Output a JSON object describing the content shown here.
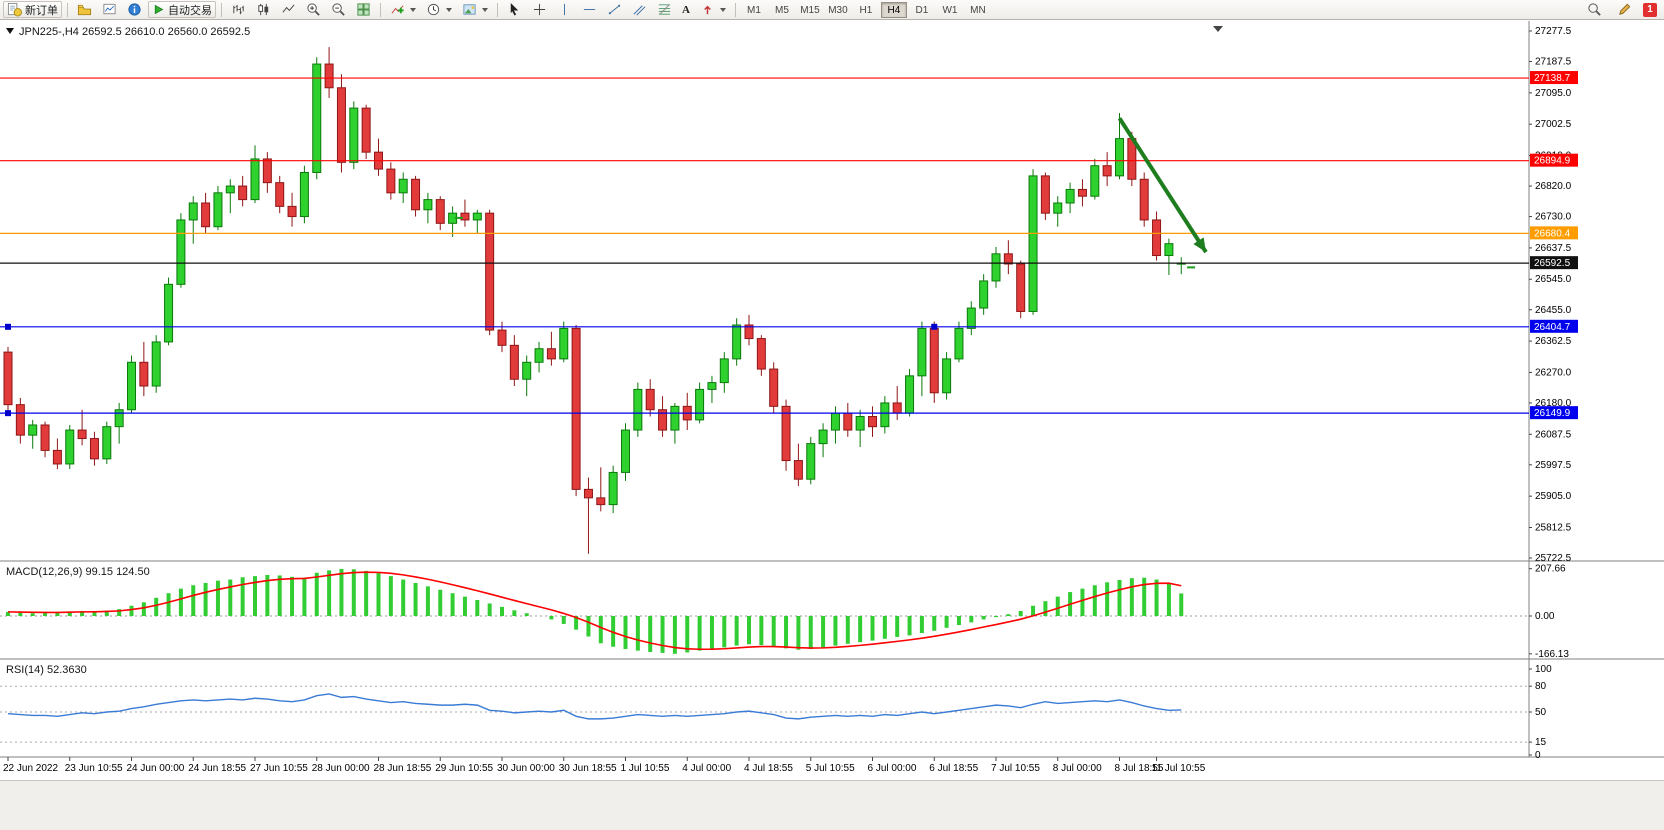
{
  "toolbar": {
    "new_order": "新订单",
    "auto_trading": "自动交易",
    "text_tool_glyph": "A",
    "timeframes": [
      "M1",
      "M5",
      "M15",
      "M30",
      "H1",
      "H4",
      "D1",
      "W1",
      "MN"
    ],
    "active_timeframe": "H4",
    "notification_count": "1"
  },
  "chart_data": [
    {
      "type": "candlestick",
      "title": "JPN225-,H4",
      "header": "JPN225-,H4  26592.5 26610.0 26560.0 26592.5",
      "ylim": [
        25722.5,
        27277.5
      ],
      "up_color": "#2fd12f",
      "up_stroke": "#0b7a0b",
      "down_color": "#e23b3b",
      "down_stroke": "#8f1616",
      "y_ticks": [
        27277.5,
        27187.5,
        27095.0,
        27002.5,
        26910.0,
        26820.0,
        26730.0,
        26637.5,
        26545.0,
        26455.0,
        26362.5,
        26270.0,
        26180.0,
        26087.5,
        25997.5,
        25905.0,
        25812.5,
        25722.5
      ],
      "hlines": [
        {
          "value": 27138.7,
          "color": "#ff0000"
        },
        {
          "value": 26894.9,
          "color": "#ff0000"
        },
        {
          "value": 26680.4,
          "color": "#ff9d00"
        },
        {
          "value": 26592.5,
          "color": "#111111"
        },
        {
          "value": 26404.7,
          "color": "#0000ee"
        },
        {
          "value": 26149.9,
          "color": "#0000ee"
        }
      ],
      "handles": [
        {
          "bar": 0,
          "value": 26404.7
        },
        {
          "bar": 75,
          "value": 26404.7
        },
        {
          "bar": 0,
          "value": 26149.9
        }
      ],
      "tick_markers": [
        {
          "bar": 36.5,
          "price": 26726
        },
        {
          "bar": 95.8,
          "price": 26580
        }
      ],
      "annotation_arrow": {
        "from_bar": 90,
        "from_price": 27020,
        "to_bar": 97,
        "to_price": 26625,
        "color": "#1e7d1e"
      },
      "x_labels": [
        {
          "bar": 0,
          "text": "22 Jun 2022"
        },
        {
          "bar": 5,
          "text": "23 Jun 10:55"
        },
        {
          "bar": 10,
          "text": "24 Jun 00:00"
        },
        {
          "bar": 15,
          "text": "24 Jun 18:55"
        },
        {
          "bar": 20,
          "text": "27 Jun 10:55"
        },
        {
          "bar": 25,
          "text": "28 Jun 00:00"
        },
        {
          "bar": 30,
          "text": "28 Jun 18:55"
        },
        {
          "bar": 35,
          "text": "29 Jun 10:55"
        },
        {
          "bar": 40,
          "text": "30 Jun 00:00"
        },
        {
          "bar": 45,
          "text": "30 Jun 18:55"
        },
        {
          "bar": 50,
          "text": "1 Jul 10:55"
        },
        {
          "bar": 55,
          "text": "4 Jul 00:00"
        },
        {
          "bar": 60,
          "text": "4 Jul 18:55"
        },
        {
          "bar": 65,
          "text": "5 Jul 10:55"
        },
        {
          "bar": 70,
          "text": "6 Jul 00:00"
        },
        {
          "bar": 75,
          "text": "6 Jul 18:55"
        },
        {
          "bar": 80,
          "text": "7 Jul 10:55"
        },
        {
          "bar": 85,
          "text": "8 Jul 00:00"
        },
        {
          "bar": 90,
          "text": "8 Jul 18:55"
        },
        {
          "bar": 93,
          "text": "11 Jul 10:55"
        }
      ],
      "ohlc": [
        [
          26330,
          26345,
          26155,
          26175
        ],
        [
          26175,
          26195,
          26060,
          26085
        ],
        [
          26085,
          26130,
          26045,
          26115
        ],
        [
          26115,
          26125,
          26020,
          26040
        ],
        [
          26040,
          26075,
          25985,
          26000
        ],
        [
          26000,
          26115,
          25985,
          26100
        ],
        [
          26100,
          26160,
          26055,
          26075
        ],
        [
          26075,
          26095,
          25995,
          26015
        ],
        [
          26015,
          26125,
          26000,
          26110
        ],
        [
          26110,
          26180,
          26060,
          26160
        ],
        [
          26160,
          26320,
          26150,
          26300
        ],
        [
          26300,
          26360,
          26200,
          26230
        ],
        [
          26230,
          26380,
          26210,
          26360
        ],
        [
          26360,
          26550,
          26350,
          26530
        ],
        [
          26530,
          26740,
          26520,
          26720
        ],
        [
          26720,
          26790,
          26650,
          26770
        ],
        [
          26770,
          26800,
          26680,
          26700
        ],
        [
          26700,
          26820,
          26690,
          26800
        ],
        [
          26800,
          26840,
          26740,
          26820
        ],
        [
          26820,
          26850,
          26760,
          26780
        ],
        [
          26780,
          26940,
          26770,
          26900
        ],
        [
          26900,
          26920,
          26800,
          26830
        ],
        [
          26830,
          26850,
          26740,
          26760
        ],
        [
          26760,
          26800,
          26700,
          26730
        ],
        [
          26730,
          26880,
          26710,
          26860
        ],
        [
          26860,
          27200,
          26840,
          27180
        ],
        [
          27180,
          27230,
          27080,
          27110
        ],
        [
          27110,
          27150,
          26860,
          26890
        ],
        [
          26890,
          27070,
          26870,
          27050
        ],
        [
          27050,
          27060,
          26900,
          26920
        ],
        [
          26920,
          26960,
          26850,
          26870
        ],
        [
          26870,
          26890,
          26780,
          26800
        ],
        [
          26800,
          26860,
          26770,
          26840
        ],
        [
          26840,
          26850,
          26730,
          26750
        ],
        [
          26750,
          26800,
          26710,
          26780
        ],
        [
          26780,
          26790,
          26690,
          26710
        ],
        [
          26710,
          26760,
          26670,
          26740
        ],
        [
          26740,
          26780,
          26700,
          26720
        ],
        [
          26720,
          26750,
          26680,
          26740
        ],
        [
          26740,
          26750,
          26380,
          26395
        ],
        [
          26395,
          26420,
          26330,
          26350
        ],
        [
          26350,
          26380,
          26230,
          26250
        ],
        [
          26250,
          26320,
          26200,
          26300
        ],
        [
          26300,
          26360,
          26270,
          26340
        ],
        [
          26340,
          26390,
          26290,
          26310
        ],
        [
          26310,
          26420,
          26300,
          26400
        ],
        [
          26400,
          26410,
          25905,
          25925
        ],
        [
          25925,
          25960,
          25735,
          25900
        ],
        [
          25900,
          25990,
          25860,
          25880
        ],
        [
          25880,
          25995,
          25855,
          25975
        ],
        [
          25975,
          26120,
          25950,
          26100
        ],
        [
          26100,
          26240,
          26080,
          26220
        ],
        [
          26220,
          26250,
          26140,
          26160
        ],
        [
          26160,
          26200,
          26080,
          26100
        ],
        [
          26100,
          26180,
          26060,
          26170
        ],
        [
          26170,
          26210,
          26100,
          26130
        ],
        [
          26130,
          26240,
          26120,
          26220
        ],
        [
          26220,
          26260,
          26180,
          26240
        ],
        [
          26240,
          26330,
          26210,
          26310
        ],
        [
          26310,
          26430,
          26290,
          26410
        ],
        [
          26410,
          26440,
          26350,
          26370
        ],
        [
          26370,
          26380,
          26260,
          26280
        ],
        [
          26280,
          26300,
          26150,
          26170
        ],
        [
          26170,
          26190,
          25980,
          26010
        ],
        [
          26010,
          26060,
          25935,
          25955
        ],
        [
          25955,
          26080,
          25940,
          26060
        ],
        [
          26060,
          26120,
          26020,
          26100
        ],
        [
          26100,
          26170,
          26060,
          26150
        ],
        [
          26150,
          26180,
          26080,
          26100
        ],
        [
          26100,
          26160,
          26050,
          26140
        ],
        [
          26140,
          26170,
          26080,
          26110
        ],
        [
          26110,
          26200,
          26090,
          26180
        ],
        [
          26180,
          26230,
          26130,
          26150
        ],
        [
          26150,
          26280,
          26140,
          26260
        ],
        [
          26260,
          26420,
          26200,
          26400
        ],
        [
          26400,
          26420,
          26180,
          26210
        ],
        [
          26210,
          26330,
          26190,
          26310
        ],
        [
          26310,
          26420,
          26300,
          26400
        ],
        [
          26400,
          26480,
          26380,
          26460
        ],
        [
          26460,
          26560,
          26440,
          26540
        ],
        [
          26540,
          26640,
          26520,
          26620
        ],
        [
          26620,
          26660,
          26560,
          26590
        ],
        [
          26590,
          26600,
          26430,
          26450
        ],
        [
          26450,
          26870,
          26440,
          26850
        ],
        [
          26850,
          26860,
          26720,
          26740
        ],
        [
          26740,
          26790,
          26700,
          26770
        ],
        [
          26770,
          26830,
          26740,
          26810
        ],
        [
          26810,
          26840,
          26760,
          26790
        ],
        [
          26790,
          26900,
          26780,
          26880
        ],
        [
          26880,
          26920,
          26820,
          26850
        ],
        [
          26850,
          27035,
          26840,
          26960
        ],
        [
          26960,
          26980,
          26820,
          26840
        ],
        [
          26840,
          26860,
          26700,
          26720
        ],
        [
          26720,
          26745,
          26600,
          26615
        ],
        [
          26615,
          26665,
          26557.5,
          26650
        ],
        [
          26592.5,
          26610,
          26560,
          26592.5
        ]
      ]
    },
    {
      "type": "bar",
      "title": "MACD(12,26,9)",
      "values_label": "99.15 124.50",
      "ylim": [
        -180,
        215
      ],
      "bar_color": "#32cd32",
      "signal_color": "#ff0000",
      "y_ticks": [
        207.66,
        0,
        -166.13
      ],
      "y_tick_labels": [
        "207.66",
        "0.00",
        "-166.13"
      ],
      "values": [
        18,
        15,
        12,
        14,
        16,
        20,
        22,
        20,
        24,
        30,
        45,
        60,
        80,
        100,
        120,
        135,
        145,
        155,
        160,
        170,
        175,
        180,
        178,
        172,
        168,
        190,
        200,
        207,
        205,
        198,
        188,
        175,
        160,
        145,
        130,
        115,
        100,
        85,
        70,
        55,
        40,
        25,
        12,
        0,
        -15,
        -35,
        -60,
        -90,
        -120,
        -135,
        -145,
        -152,
        -158,
        -162,
        -166,
        -160,
        -152,
        -145,
        -138,
        -130,
        -124,
        -128,
        -135,
        -142,
        -148,
        -145,
        -138,
        -130,
        -122,
        -115,
        -108,
        -100,
        -92,
        -85,
        -75,
        -65,
        -52,
        -40,
        -28,
        -15,
        -5,
        8,
        22,
        45,
        65,
        85,
        105,
        120,
        135,
        148,
        158,
        166,
        168,
        160,
        145,
        99
      ]
    },
    {
      "type": "line",
      "title": "RSI(14)",
      "values_label": "52.3630",
      "ylim": [
        0,
        100
      ],
      "line_color": "#3a7bd5",
      "y_ticks": [
        100,
        80,
        50,
        15,
        0
      ],
      "levels": [
        80,
        50,
        15
      ],
      "values": [
        48,
        47,
        46,
        46,
        45,
        47,
        49,
        48,
        50,
        51,
        54,
        56,
        59,
        61,
        63,
        64,
        63,
        64,
        65,
        64,
        66,
        65,
        63,
        62,
        64,
        69,
        71,
        67,
        68,
        65,
        63,
        61,
        62,
        60,
        59,
        58,
        58,
        59,
        58,
        52,
        51,
        49,
        50,
        51,
        50,
        52,
        45,
        42,
        42,
        43,
        45,
        47,
        46,
        45,
        46,
        45,
        46,
        47,
        48,
        50,
        51,
        49,
        47,
        43,
        42,
        44,
        45,
        46,
        45,
        46,
        45,
        47,
        46,
        48,
        50,
        48,
        50,
        52,
        54,
        56,
        58,
        57,
        55,
        59,
        62,
        60,
        61,
        62,
        63,
        62,
        64,
        61,
        57,
        54,
        52,
        52.36
      ]
    }
  ]
}
